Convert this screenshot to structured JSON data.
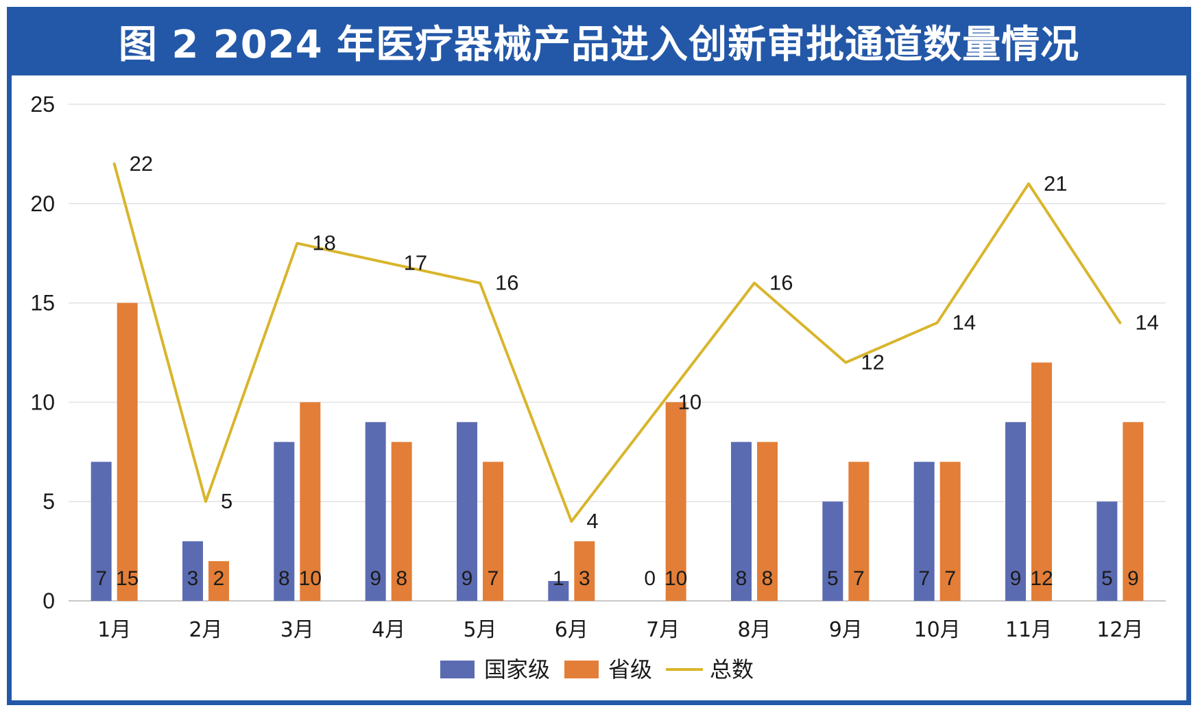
{
  "chart_data": {
    "type": "bar",
    "title": "图 2  2024 年医疗器械产品进入创新审批通道数量情况",
    "categories": [
      "1月",
      "2月",
      "3月",
      "4月",
      "5月",
      "6月",
      "7月",
      "8月",
      "9月",
      "10月",
      "11月",
      "12月"
    ],
    "series": [
      {
        "name": "国家级",
        "type": "bar",
        "color": "#5b6bb2",
        "values": [
          7,
          3,
          8,
          9,
          9,
          1,
          0,
          8,
          5,
          7,
          9,
          5
        ]
      },
      {
        "name": "省级",
        "type": "bar",
        "color": "#e27e37",
        "values": [
          15,
          2,
          10,
          8,
          7,
          3,
          10,
          8,
          7,
          7,
          12,
          9
        ]
      },
      {
        "name": "总数",
        "type": "line",
        "color": "#d9b52c",
        "values": [
          22,
          5,
          18,
          17,
          16,
          4,
          10,
          16,
          12,
          14,
          21,
          14
        ]
      }
    ],
    "ylim": [
      0,
      25
    ],
    "yticks": [
      0,
      5,
      10,
      15,
      20,
      25
    ],
    "grid": true,
    "legend": "bottom"
  }
}
